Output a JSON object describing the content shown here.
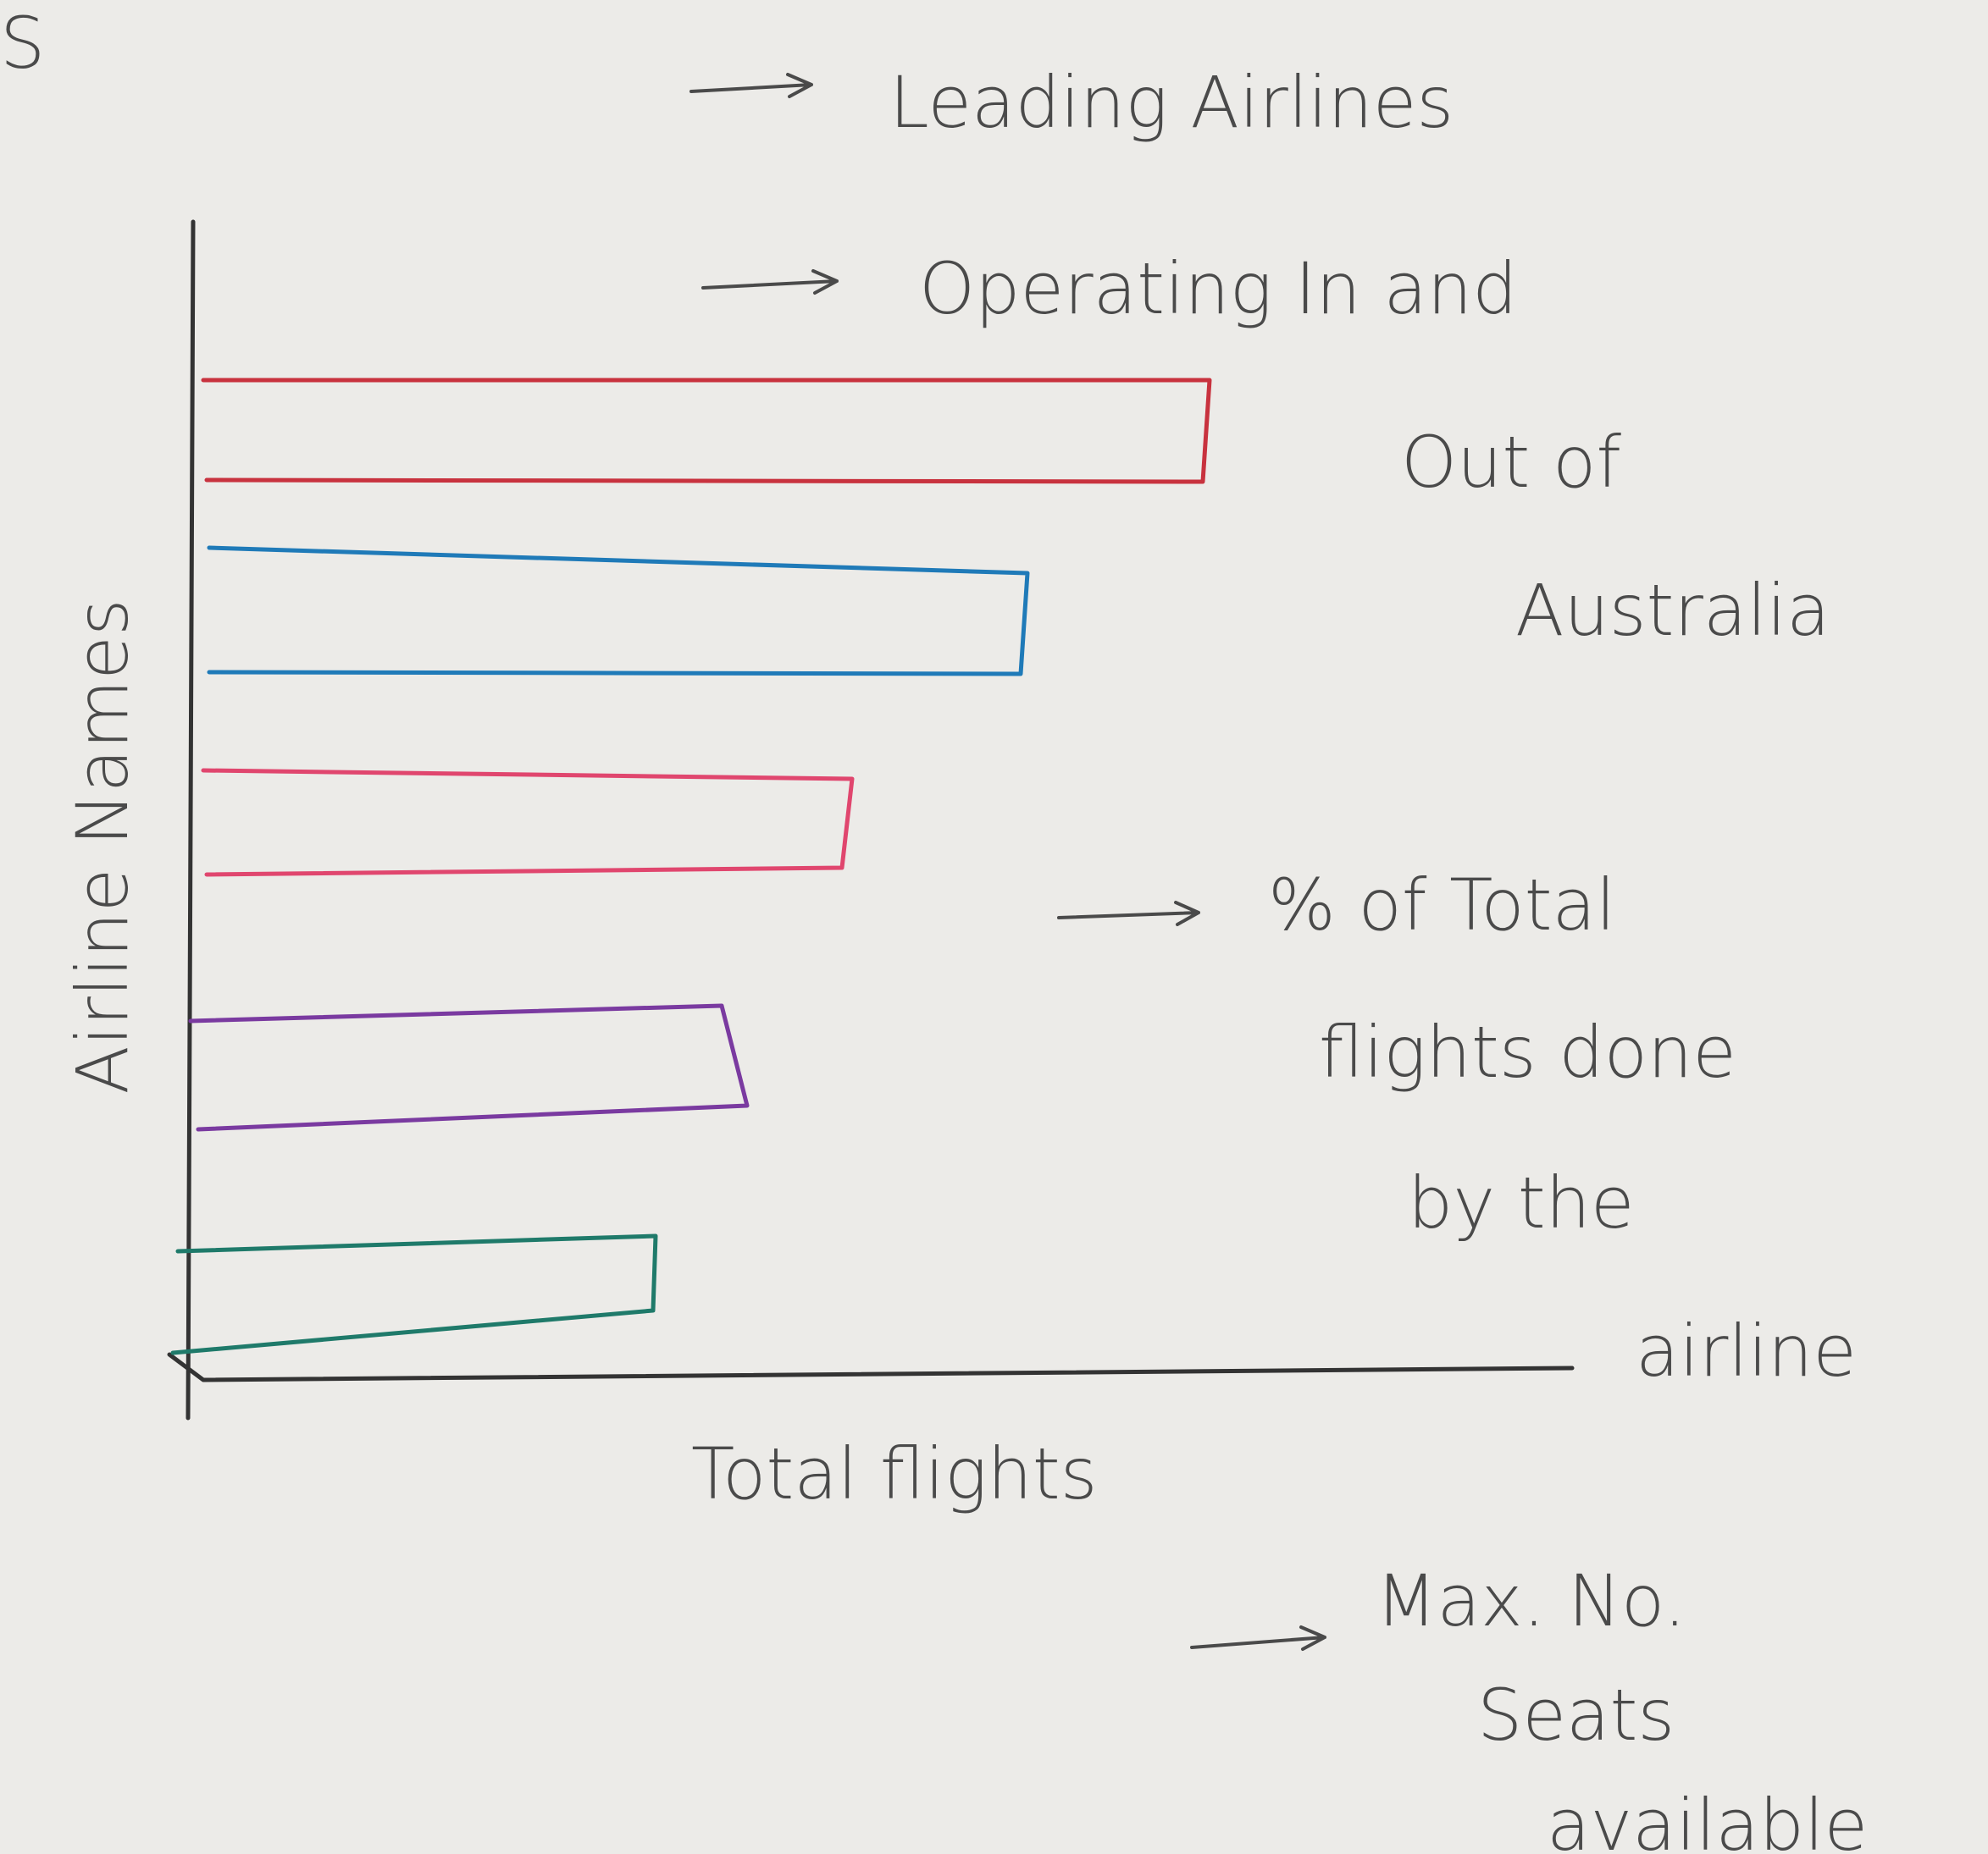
{
  "corner_fragment": "S",
  "notes": [
    {
      "lines": [
        "Leading Airlines"
      ]
    },
    {
      "lines": [
        "Operating In and",
        "Out of",
        "Australia"
      ]
    },
    {
      "lines": [
        "% of Total",
        "flights done",
        "by the",
        "airline"
      ]
    },
    {
      "lines": [
        "Max. No.",
        "Seats",
        "available"
      ]
    }
  ],
  "y_axis_label": "Airline Names",
  "x_axis_label": "Total flights"
}
